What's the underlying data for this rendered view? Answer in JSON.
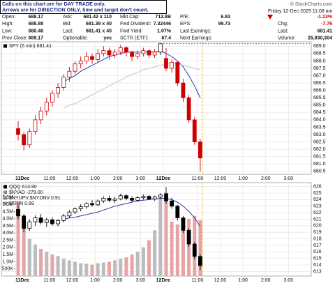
{
  "note": [
    "Calls on this chart are for DAY TRADE only.",
    "Arrows are for DIRECTION ONLY, time and target don't count."
  ],
  "header": {
    "date": "Friday 12-Dec-2025 11:08 am",
    "source": "© StockCharts.com"
  },
  "quote": [
    [
      {
        "label": "Open:",
        "value": 688.17
      },
      {
        "label": "High:",
        "value": 688.88
      },
      {
        "label": "Low:",
        "value": 680.48
      },
      {
        "label": "Prev Close:",
        "value": 689.17
      }
    ],
    [
      {
        "label": "Ask:",
        "value": "681.42 x 110"
      },
      {
        "label": "Bid:",
        "value": "681.39 x 40"
      },
      {
        "label": "Last:",
        "value": "681.41 x 40"
      },
      {
        "label": "Optionable:",
        "value": "yes"
      }
    ],
    [
      {
        "label": "Mkt Cap:",
        "value": "712.8B"
      },
      {
        "label": "Fwd Dividend:",
        "value": 7.32446
      },
      {
        "label": "Fwd Yield:",
        "value": "1.07%"
      },
      {
        "label": "SCTR (ETF):",
        "value": 67.4
      }
    ],
    [
      {
        "label": "P/E:",
        "value": 6.83
      },
      {
        "label": "EPS:",
        "value": 99.73
      },
      {
        "label": "Last Earnings:"
      },
      {
        "label": "Next Earnings:"
      }
    ],
    [
      {
        "value": "-1.13%"
      },
      {
        "label": "Chg:",
        "value": -7.76
      },
      {
        "label": "Last:",
        "value": 681.41
      },
      {
        "label": "Volume:",
        "value": "25,930,304"
      }
    ]
  ],
  "chart_data": [
    {
      "type": "candlestick",
      "labels": [
        "SPY (5 min) 681.41"
      ],
      "color": "#000000",
      "decline_color": "#cc0000",
      "grid": true,
      "x": [
        0,
        0.25,
        0.5,
        0.75,
        1,
        1.25,
        1.5,
        1.75,
        2,
        2.25,
        2.5,
        2.75,
        3,
        3.25,
        3.5,
        3.75,
        4,
        4.25,
        4.5,
        4.75,
        5,
        5.25,
        5.5,
        5.75,
        6,
        6.25,
        6.5,
        6.75,
        7,
        7.25,
        7.5,
        7.75,
        8
      ],
      "ohlc": [
        [
          683.4,
          683.9,
          682.6,
          683.0
        ],
        [
          683.0,
          683.2,
          681.9,
          682.3
        ],
        [
          682.3,
          683.4,
          682.1,
          683.2
        ],
        [
          683.2,
          684.3,
          683.0,
          684.0
        ],
        [
          684.0,
          684.9,
          683.7,
          684.6
        ],
        [
          684.6,
          685.5,
          684.3,
          685.2
        ],
        [
          685.2,
          686.0,
          684.9,
          685.8
        ],
        [
          685.8,
          686.5,
          685.5,
          686.2
        ],
        [
          686.2,
          687.1,
          686.0,
          686.9
        ],
        [
          686.9,
          687.6,
          686.6,
          687.3
        ],
        [
          687.3,
          688.0,
          687.1,
          687.8
        ],
        [
          687.8,
          688.3,
          687.5,
          688.0
        ],
        [
          688.0,
          688.6,
          687.8,
          688.3
        ],
        [
          688.3,
          688.5,
          687.8,
          688.1
        ],
        [
          688.1,
          688.8,
          687.9,
          688.5
        ],
        [
          688.5,
          689.0,
          688.3,
          688.7
        ],
        [
          688.7,
          688.9,
          688.1,
          688.4
        ],
        [
          688.4,
          688.8,
          688.2,
          688.6
        ],
        [
          688.6,
          689.1,
          688.4,
          688.9
        ],
        [
          688.9,
          689.0,
          688.3,
          688.6
        ],
        [
          688.6,
          688.7,
          688.0,
          688.3
        ],
        [
          688.3,
          688.7,
          688.1,
          688.5
        ],
        [
          688.5,
          688.9,
          688.3,
          688.7
        ],
        [
          688.7,
          688.8,
          688.2,
          688.4
        ],
        [
          688.4,
          688.8,
          688.2,
          688.6
        ],
        [
          688.6,
          689.2,
          688.4,
          689.17
        ],
        [
          688.17,
          688.88,
          687.3,
          687.5
        ],
        [
          687.5,
          688.1,
          687.2,
          687.9
        ],
        [
          687.9,
          688.0,
          686.3,
          686.5
        ],
        [
          686.5,
          686.8,
          685.2,
          685.5
        ],
        [
          685.5,
          685.7,
          683.8,
          684.0
        ],
        [
          684.0,
          684.2,
          682.3,
          682.5
        ],
        [
          682.5,
          682.7,
          680.48,
          681.41
        ]
      ],
      "overlays": [
        {
          "color": "#2b3aa8",
          "values": [
            null,
            null,
            null,
            null,
            null,
            null,
            null,
            null,
            686.6,
            686.8,
            687.0,
            687.3,
            687.5,
            687.7,
            687.9,
            688.1,
            688.3,
            688.4,
            688.5,
            688.6,
            688.6,
            688.6,
            688.6,
            688.6,
            688.6,
            688.7,
            688.5,
            688.3,
            688.0,
            687.6,
            687.0,
            686.3,
            685.5
          ]
        },
        {
          "color": "#c4c4c4",
          "values": [
            null,
            null,
            null,
            null,
            null,
            null,
            null,
            null,
            684.8,
            685.0,
            685.1,
            685.3,
            685.5,
            685.7,
            685.9,
            686.1,
            686.3,
            686.5,
            686.7,
            686.9,
            687.1,
            687.2,
            687.4,
            687.5,
            687.6,
            687.7,
            687.8,
            687.8,
            687.8,
            687.7,
            687.6,
            687.5,
            687.4
          ]
        }
      ],
      "xlim": [
        0,
        13
      ],
      "xticks": [
        {
          "value": 0,
          "label": "11Dec"
        },
        {
          "value": 1.5,
          "label": "11:00"
        },
        {
          "value": 2.5,
          "label": "12:00"
        },
        {
          "value": 3.5,
          "label": "1:00"
        },
        {
          "value": 4.5,
          "label": "2:00"
        },
        {
          "value": 5.5,
          "label": "3:00"
        },
        {
          "value": 6.5,
          "label": "12Dec"
        },
        {
          "value": 8,
          "label": "11:00"
        },
        {
          "value": 9,
          "label": "12:00"
        },
        {
          "value": 10,
          "label": "1:00"
        },
        {
          "value": 11,
          "label": "2:00"
        },
        {
          "value": 12,
          "label": "3:00"
        }
      ],
      "ylim": [
        680.3,
        689.3
      ],
      "yticks": [
        680.5,
        {
          "value": 681,
          "label": "681.0"
        },
        681.5,
        {
          "value": 682,
          "label": "682.0"
        },
        682.5,
        {
          "value": 683,
          "label": "683.0"
        },
        683.5,
        {
          "value": 684,
          "label": "684.0"
        },
        684.5,
        {
          "value": 685,
          "label": "685.0"
        },
        685.5,
        {
          "value": 686,
          "label": "686.0"
        },
        686.5,
        {
          "value": 687,
          "label": "687.0"
        },
        687.5,
        {
          "value": 688,
          "label": "688.0"
        },
        688.5,
        {
          "value": 689,
          "label": "689.0"
        }
      ]
    },
    {
      "type": "candlestick",
      "labels": [
        "QQQ 613.90",
        "$NYAD -279.00",
        "$NYUPV:$NYDNV 0.91",
        "$TRIN 0.89"
      ],
      "color": "#000000",
      "grid": true,
      "x": [
        0,
        0.25,
        0.5,
        0.75,
        1,
        1.25,
        1.5,
        1.75,
        2,
        2.25,
        2.5,
        2.75,
        3,
        3.25,
        3.5,
        3.75,
        4,
        4.25,
        4.5,
        4.75,
        5,
        5.25,
        5.5,
        5.75,
        6,
        6.25,
        6.5,
        6.75,
        7,
        7.25,
        7.5,
        7.75,
        8
      ],
      "ohlc": [
        [
          622.5,
          623.2,
          621.0,
          621.5
        ],
        [
          621.5,
          621.8,
          619.0,
          619.6
        ],
        [
          619.6,
          621.0,
          619.2,
          620.6
        ],
        [
          620.6,
          621.6,
          620.0,
          621.2
        ],
        [
          621.2,
          621.8,
          620.2,
          620.5
        ],
        [
          620.5,
          621.2,
          619.8,
          620.9
        ],
        [
          620.9,
          621.3,
          620.0,
          620.3
        ],
        [
          620.3,
          621.0,
          619.9,
          620.8
        ],
        [
          620.8,
          621.8,
          620.5,
          621.5
        ],
        [
          621.5,
          622.4,
          621.2,
          622.1
        ],
        [
          622.1,
          622.8,
          621.8,
          622.6
        ],
        [
          622.6,
          623.3,
          622.2,
          622.9
        ],
        [
          622.9,
          623.6,
          622.6,
          623.4
        ],
        [
          623.4,
          623.9,
          622.9,
          623.2
        ],
        [
          623.2,
          624.0,
          623.0,
          623.8
        ],
        [
          623.8,
          624.5,
          623.5,
          624.2
        ],
        [
          624.2,
          624.6,
          623.6,
          623.9
        ],
        [
          623.9,
          624.4,
          623.5,
          624.1
        ],
        [
          624.1,
          624.9,
          623.9,
          624.6
        ],
        [
          624.6,
          624.8,
          623.9,
          624.2
        ],
        [
          624.2,
          624.5,
          623.6,
          623.9
        ],
        [
          623.9,
          624.5,
          623.7,
          624.3
        ],
        [
          624.3,
          624.8,
          624.0,
          624.5
        ],
        [
          624.5,
          624.7,
          623.9,
          624.1
        ],
        [
          624.1,
          624.6,
          623.8,
          624.4
        ],
        [
          624.4,
          625.0,
          624.1,
          624.7
        ],
        [
          624.9,
          625.9,
          623.4,
          623.8
        ],
        [
          623.8,
          624.3,
          622.6,
          623.0
        ],
        [
          623.0,
          623.2,
          620.8,
          621.2
        ],
        [
          621.2,
          621.5,
          618.9,
          619.3
        ],
        [
          619.3,
          619.6,
          616.8,
          617.2
        ],
        [
          617.2,
          617.5,
          614.9,
          615.3
        ],
        [
          615.3,
          615.6,
          613.2,
          613.9
        ]
      ],
      "overlays": [
        {
          "color": "#2b3aa8",
          "values": [
            null,
            null,
            null,
            null,
            null,
            null,
            null,
            null,
            621.0,
            621.2,
            621.3,
            621.5,
            621.7,
            621.9,
            622.1,
            622.4,
            622.7,
            623.0,
            623.2,
            623.4,
            623.6,
            623.8,
            623.9,
            624.0,
            624.1,
            624.2,
            624.2,
            624.0,
            623.6,
            623.0,
            622.2,
            621.2,
            619.9
          ]
        }
      ],
      "volume": {
        "color": "#bcbcbc",
        "decline_color": "#e8a4a4",
        "values": [
          5200000,
          3400000,
          2600000,
          2200000,
          1900000,
          1700000,
          1500000,
          1400000,
          1200000,
          1100000,
          1000000,
          900000,
          850000,
          800000,
          900000,
          950000,
          1000000,
          1100000,
          1200000,
          1300000,
          1500000,
          1700000,
          2000000,
          2500000,
          3200000,
          5600000,
          5800000,
          3800000,
          3600000,
          3500000,
          4000000,
          4200000,
          3900000
        ],
        "ylim": [
          0,
          6520000
        ],
        "yticks": [
          {
            "value": 500000,
            "label": "500K"
          },
          {
            "value": 1000000,
            "label": "1.0M"
          },
          {
            "value": 1500000,
            "label": "1.5M"
          },
          {
            "value": 2000000,
            "label": "2.0M"
          },
          {
            "value": 2500000,
            "label": "2.5M"
          },
          {
            "value": 3000000,
            "label": "3.0M"
          },
          {
            "value": 3500000,
            "label": "3.5M"
          },
          {
            "value": 4000000,
            "label": "4.0M"
          },
          {
            "value": 4500000,
            "label": "4.5M"
          },
          {
            "value": 5000000,
            "label": "5.0M"
          },
          {
            "value": 5500000,
            "label": "5.5M"
          }
        ]
      },
      "xlim": [
        0,
        13
      ],
      "xticks": [
        {
          "value": 0,
          "label": "11Dec"
        },
        {
          "value": 1.5,
          "label": "11:00"
        },
        {
          "value": 2.5,
          "label": "12:00"
        },
        {
          "value": 3.5,
          "label": "1:00"
        },
        {
          "value": 4.5,
          "label": "2:00"
        },
        {
          "value": 5.5,
          "label": "3:00"
        },
        {
          "value": 6.5,
          "label": "12Dec"
        },
        {
          "value": 8,
          "label": "11:00"
        },
        {
          "value": 9,
          "label": "12:00"
        },
        {
          "value": 10,
          "label": "1:00"
        },
        {
          "value": 11,
          "label": "2:00"
        },
        {
          "value": 12,
          "label": "3:00"
        }
      ],
      "ylim": [
        612.3,
        626.6
      ],
      "yticks": [
        613,
        614,
        615,
        616,
        617,
        618,
        619,
        620,
        621,
        622,
        623,
        624,
        625,
        626
      ]
    }
  ]
}
